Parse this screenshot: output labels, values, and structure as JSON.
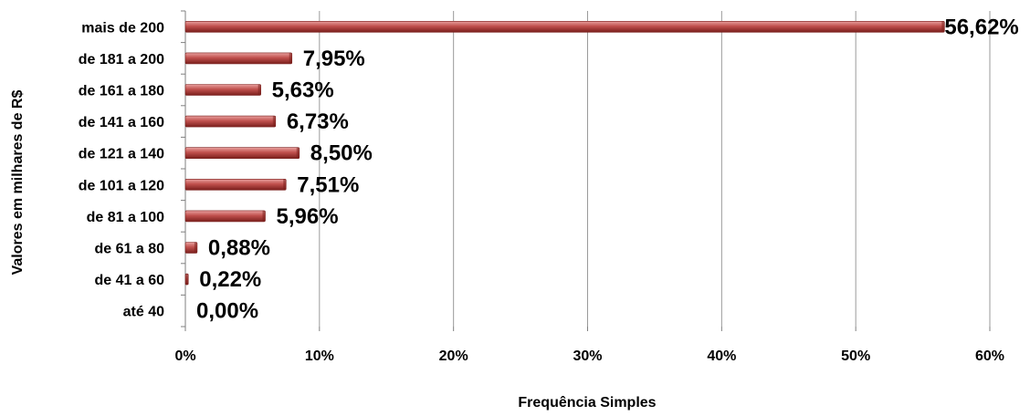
{
  "chart_data": {
    "type": "bar",
    "orientation": "horizontal",
    "categories": [
      "até 40",
      "de 41 a 60",
      "de 61 a 80",
      "de 81 a 100",
      "de 101 a 120",
      "de 121 a 140",
      "de 141 a 160",
      "de 161 a 180",
      "de 181 a 200",
      "mais de 200"
    ],
    "values": [
      0.0,
      0.22,
      0.88,
      5.96,
      7.51,
      8.5,
      6.73,
      5.63,
      7.95,
      56.62
    ],
    "data_labels": [
      "0,00%",
      "0,22%",
      "0,88%",
      "5,96%",
      "7,51%",
      "8,50%",
      "6,73%",
      "5,63%",
      "7,95%",
      "56,62%"
    ],
    "xticks": [
      0,
      10,
      20,
      30,
      40,
      50,
      60
    ],
    "xtick_labels": [
      "0%",
      "10%",
      "20%",
      "30%",
      "40%",
      "50%",
      "60%"
    ],
    "xlim": [
      0,
      60
    ],
    "xlabel": "Frequência Simples",
    "ylabel": "Valores em milhares de R$",
    "grid": "vertical",
    "legend": "none",
    "bar_color": "#c0504d",
    "bar_dark_color": "#7a1f1c",
    "bar_light_color": "#e8a09e"
  }
}
